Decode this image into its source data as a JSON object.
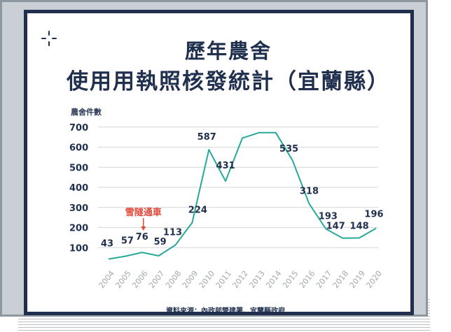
{
  "title_line1": "歷年農舍",
  "title_line2": "使用用執照核發統計（宜蘭縣）",
  "source": "資料來源：內政部營建署、宜蘭縣政府",
  "colors": {
    "navy": "#1f2f4d",
    "line": "#27a99a",
    "annotation": "#e2473a",
    "frame": "#c9cfd4"
  },
  "chart_data": {
    "type": "line",
    "ylabel": "農舍件數",
    "x": [
      "2004",
      "2005",
      "2006",
      "2007",
      "2008",
      "2009",
      "2010",
      "2011",
      "2012",
      "2013",
      "2014",
      "2015",
      "2016",
      "2017",
      "2018",
      "2019",
      "2020"
    ],
    "series": [
      {
        "values": [
          43,
          57,
          76,
          59,
          113,
          224,
          587,
          431,
          645,
          672,
          672,
          535,
          318,
          193,
          147,
          148,
          196
        ]
      }
    ],
    "data_labels": [
      "43",
      "57",
      "76",
      "59",
      "113",
      "224",
      "587",
      "431",
      "",
      "",
      "",
      "535",
      "318",
      "193",
      "147",
      "148",
      "196"
    ],
    "yticks": [
      "700",
      "600",
      "500",
      "400",
      "300",
      "200",
      "100"
    ],
    "ylim": [
      0,
      700
    ],
    "grid": true,
    "annotation": {
      "text": "雪隧通車",
      "x": "2006"
    }
  }
}
